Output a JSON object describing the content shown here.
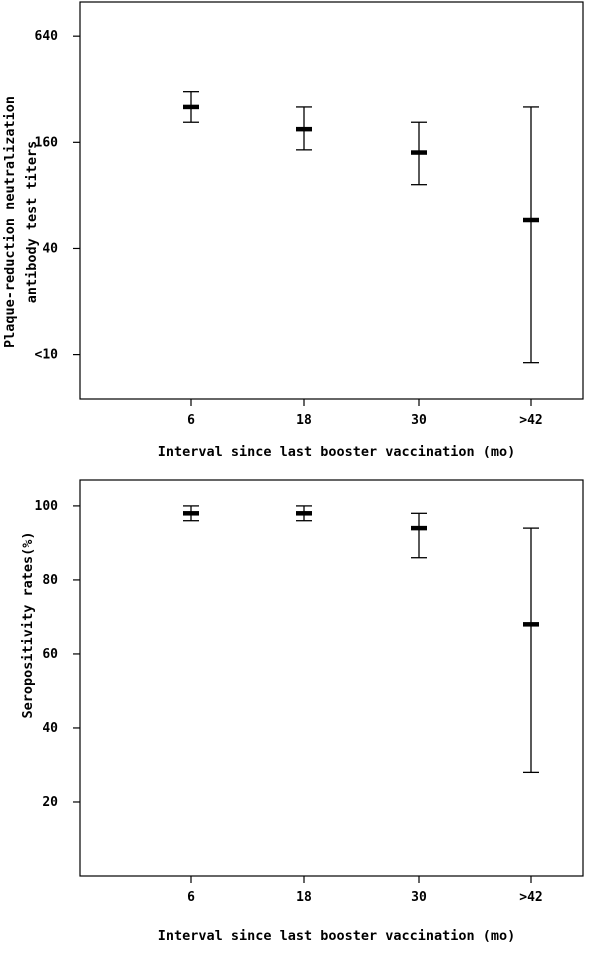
{
  "chart_data": [
    {
      "type": "errorbar",
      "title": "",
      "xlabel": "Interval since last booster vaccination (mo)",
      "ylabel": [
        "Plaque-reduction neutralization",
        "antibody test titers"
      ],
      "y_scale": "log2",
      "categories": [
        "6",
        "18",
        "30",
        ">42"
      ],
      "y_ticks": [
        {
          "value": 10,
          "label": "<10"
        },
        {
          "value": 40,
          "label": "40"
        },
        {
          "value": 160,
          "label": "160"
        },
        {
          "value": 640,
          "label": "640"
        }
      ],
      "ylim": [
        5.6,
        1000
      ],
      "grid": false,
      "series": [
        {
          "mean": [
            254,
            190,
            140,
            58
          ],
          "lower": [
            208,
            145,
            92,
            9
          ],
          "upper": [
            310,
            254,
            208,
            254
          ]
        }
      ]
    },
    {
      "type": "errorbar",
      "title": "",
      "xlabel": "Interval since last booster vaccination (mo)",
      "ylabel": [
        "Seropositivity rates(%)"
      ],
      "y_scale": "linear",
      "categories": [
        "6",
        "18",
        "30",
        ">42"
      ],
      "y_ticks": [
        {
          "value": 20,
          "label": "20"
        },
        {
          "value": 40,
          "label": "40"
        },
        {
          "value": 60,
          "label": "60"
        },
        {
          "value": 80,
          "label": "80"
        },
        {
          "value": 100,
          "label": "100"
        }
      ],
      "ylim": [
        0,
        107
      ],
      "grid": false,
      "series": [
        {
          "mean": [
            98,
            98,
            94,
            68
          ],
          "lower": [
            96,
            96,
            86,
            28
          ],
          "upper": [
            100,
            100,
            98,
            94
          ]
        }
      ]
    }
  ]
}
